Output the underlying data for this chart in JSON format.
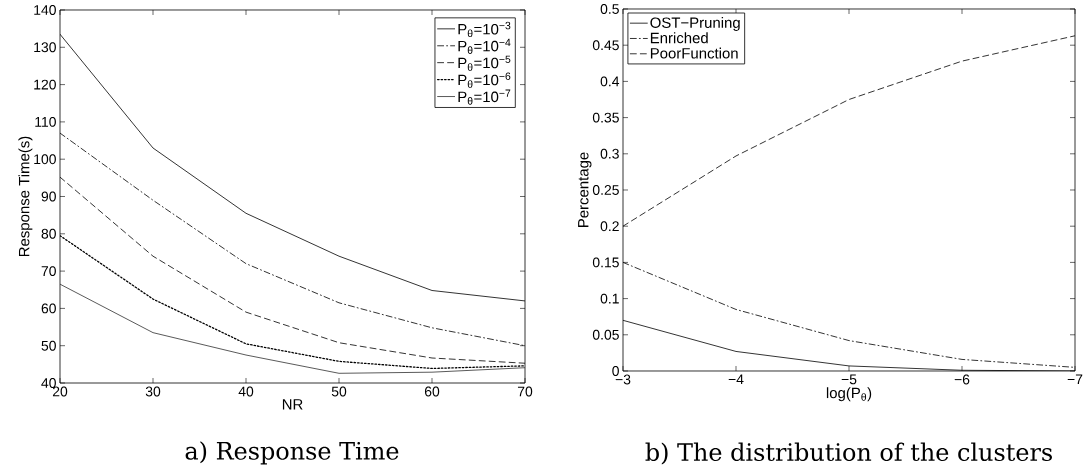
{
  "chart_data": [
    {
      "type": "line",
      "title": "a) Response Time",
      "xlabel": "NR",
      "ylabel": "Response Time(s)",
      "x": [
        20,
        30,
        40,
        50,
        60,
        70
      ],
      "xlim": [
        20,
        70
      ],
      "ylim": [
        40,
        140
      ],
      "xticks": [
        20,
        30,
        40,
        50,
        60,
        70
      ],
      "yticks": [
        40,
        50,
        60,
        70,
        80,
        90,
        100,
        110,
        120,
        130,
        140
      ],
      "legend": "top right",
      "grid": false,
      "marker": "none",
      "series": [
        {
          "name": "P$_{θ}$=10$^{−3}$",
          "color": "#000000",
          "line_style": "solid",
          "values": [
            133.5,
            103,
            85.5,
            74,
            64.8,
            62
          ]
        },
        {
          "name": "P$_{θ}$=10$^{−4}$",
          "color": "#000000",
          "line_style": "dashdot",
          "values": [
            107,
            89,
            72,
            61.5,
            54.8,
            50
          ]
        },
        {
          "name": "P$_{θ}$=10$^{−5}$",
          "color": "#000000",
          "line_style": "dashed",
          "values": [
            95.2,
            74,
            59,
            50.8,
            46.7,
            45.3
          ]
        },
        {
          "name": "P$_{θ}$=10$^{−6}$",
          "color": "#000000",
          "line_style": "dotted",
          "values": [
            79.5,
            62.5,
            50.5,
            45.8,
            43.9,
            44.6
          ]
        },
        {
          "name": "P$_{θ}$=10$^{−7}$",
          "color": "#303030",
          "line_style": "solid",
          "values": [
            66.5,
            53.5,
            47.5,
            42.6,
            42.9,
            44.1
          ]
        }
      ]
    },
    {
      "type": "line",
      "title": "b) The distribution of the clusters",
      "xlabel": "log(P$_{θ}$)",
      "ylabel": "Percentage",
      "x": [
        -3,
        -4,
        -5,
        -6,
        -7
      ],
      "xlim": [
        -3,
        -7
      ],
      "ylim": [
        0,
        0.5
      ],
      "xticks": [
        {
          "value": -3,
          "label": "−3"
        },
        {
          "value": -4,
          "label": "−4"
        },
        {
          "value": -5,
          "label": "−5"
        },
        {
          "value": -6,
          "label": "−6"
        },
        {
          "value": -7,
          "label": "−7"
        }
      ],
      "yticks": [
        0,
        0.05,
        0.1,
        0.15,
        0.2,
        0.25,
        0.3,
        0.35,
        0.4,
        0.45,
        0.5
      ],
      "legend": "top left",
      "grid": false,
      "marker": "none",
      "series": [
        {
          "name": "OST−Pruning",
          "color": "#000000",
          "line_style": "solid",
          "values": [
            0.07,
            0.027,
            0.007,
            0.001,
            0
          ]
        },
        {
          "name": "Enriched",
          "color": "#000000",
          "line_style": "dashdot",
          "values": [
            0.15,
            0.085,
            0.042,
            0.016,
            0.005
          ]
        },
        {
          "name": "PoorFunction",
          "color": "#000000",
          "line_style": "dashed",
          "values": [
            0.2,
            0.297,
            0.375,
            0.428,
            0.463
          ]
        }
      ]
    }
  ]
}
